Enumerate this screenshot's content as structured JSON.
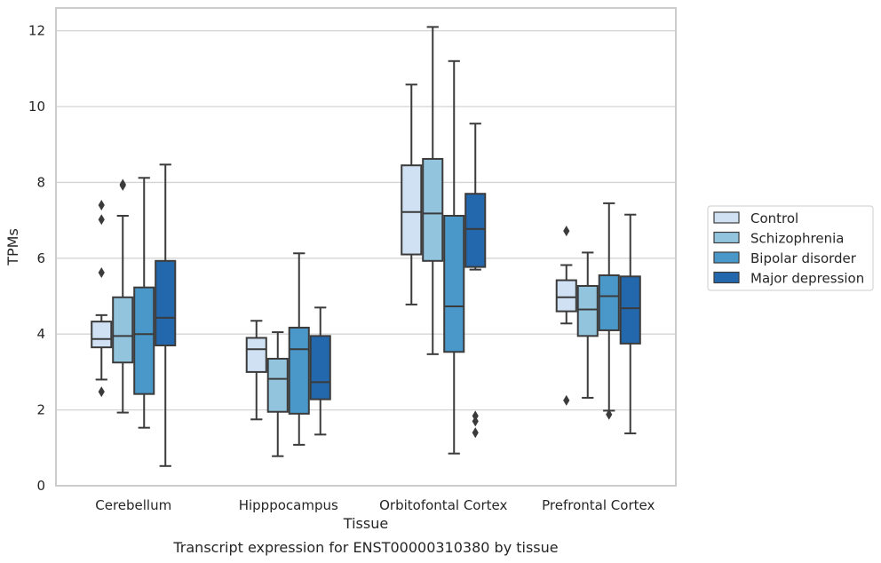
{
  "caption": "Transcript expression for ENST00000310380 by tissue",
  "chart_data": {
    "type": "boxplot",
    "xlabel": "Tissue",
    "ylabel": "TPMs",
    "ylim": [
      0,
      12.6
    ],
    "yticks": [
      "0",
      "2",
      "4",
      "6",
      "8",
      "10",
      "12"
    ],
    "grid": true,
    "legend_position": "right",
    "categories": [
      "Cerebellum",
      "Hipppocampus",
      "Orbitofontal Cortex",
      "Prefrontal Cortex"
    ],
    "series": [
      {
        "name": "Control",
        "color": "#cfe1f2",
        "boxes": [
          {
            "whislo": 2.8,
            "q1": 3.65,
            "med": 3.87,
            "q3": 4.33,
            "whishi": 4.5,
            "fliers": [
              7.4,
              7.02,
              5.62,
              2.48
            ]
          },
          {
            "whislo": 1.75,
            "q1": 3.0,
            "med": 3.6,
            "q3": 3.9,
            "whishi": 4.35,
            "fliers": []
          },
          {
            "whislo": 4.78,
            "q1": 6.1,
            "med": 7.22,
            "q3": 8.45,
            "whishi": 10.58,
            "fliers": []
          },
          {
            "whislo": 4.28,
            "q1": 4.6,
            "med": 4.97,
            "q3": 5.42,
            "whishi": 5.82,
            "fliers": [
              6.72,
              2.25
            ]
          }
        ]
      },
      {
        "name": "Schizophrenia",
        "color": "#93c4de",
        "boxes": [
          {
            "whislo": 1.93,
            "q1": 3.25,
            "med": 3.95,
            "q3": 4.97,
            "whishi": 7.12,
            "fliers": [
              7.95,
              7.92
            ]
          },
          {
            "whislo": 0.78,
            "q1": 1.95,
            "med": 2.82,
            "q3": 3.35,
            "whishi": 4.05,
            "fliers": []
          },
          {
            "whislo": 3.47,
            "q1": 5.93,
            "med": 7.18,
            "q3": 8.62,
            "whishi": 12.1,
            "fliers": []
          },
          {
            "whislo": 2.32,
            "q1": 3.95,
            "med": 4.65,
            "q3": 5.27,
            "whishi": 6.15,
            "fliers": []
          }
        ]
      },
      {
        "name": "Bipolar disorder",
        "color": "#4a98c9",
        "boxes": [
          {
            "whislo": 1.53,
            "q1": 2.42,
            "med": 4.0,
            "q3": 5.23,
            "whishi": 8.12,
            "fliers": []
          },
          {
            "whislo": 1.08,
            "q1": 1.9,
            "med": 3.6,
            "q3": 4.17,
            "whishi": 6.13,
            "fliers": []
          },
          {
            "whislo": 0.85,
            "q1": 3.53,
            "med": 4.73,
            "q3": 7.12,
            "whishi": 11.2,
            "fliers": []
          },
          {
            "whislo": 1.98,
            "q1": 4.1,
            "med": 5.0,
            "q3": 5.55,
            "whishi": 7.45,
            "fliers": [
              1.88
            ]
          }
        ]
      },
      {
        "name": "Major depression",
        "color": "#2367ac",
        "boxes": [
          {
            "whislo": 0.52,
            "q1": 3.7,
            "med": 4.43,
            "q3": 5.93,
            "whishi": 8.47,
            "fliers": []
          },
          {
            "whislo": 1.35,
            "q1": 2.28,
            "med": 2.73,
            "q3": 3.95,
            "whishi": 4.7,
            "fliers": []
          },
          {
            "whislo": 5.7,
            "q1": 5.77,
            "med": 6.77,
            "q3": 7.7,
            "whishi": 9.55,
            "fliers": [
              1.84,
              1.7,
              1.4
            ]
          },
          {
            "whislo": 1.38,
            "q1": 3.75,
            "med": 4.68,
            "q3": 5.52,
            "whishi": 7.15,
            "fliers": []
          }
        ]
      }
    ]
  }
}
